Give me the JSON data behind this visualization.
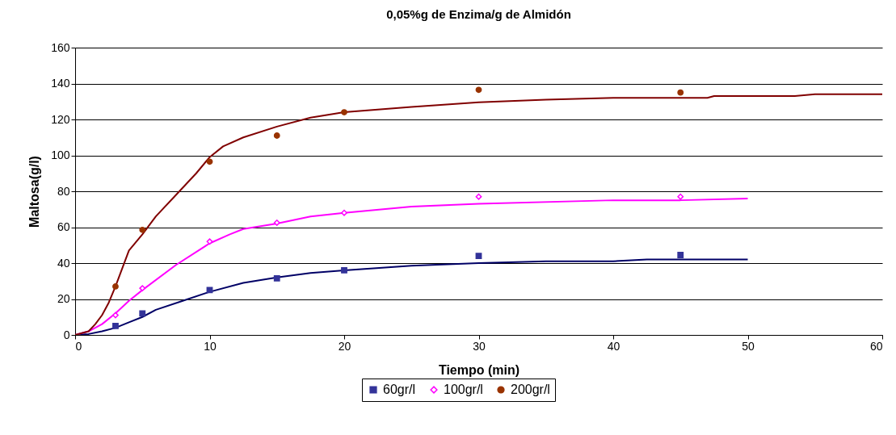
{
  "chart_data": {
    "type": "scatter",
    "title": "0,05%g de Enzima/g de Almidón",
    "xlabel": "Tiempo (min)",
    "ylabel": "Maltosa(g/l)",
    "xlim": [
      0,
      60
    ],
    "xticks": [
      0,
      10,
      20,
      30,
      40,
      50,
      60
    ],
    "ylim": [
      0,
      160
    ],
    "yticks": [
      0,
      20,
      40,
      60,
      80,
      100,
      120,
      140,
      160
    ],
    "grid": "y",
    "legend": "bottom",
    "series": [
      {
        "name": "60gr/l",
        "marker": "square",
        "color": "#333399",
        "x": [
          3,
          5,
          10,
          15,
          20,
          30,
          45
        ],
        "values": [
          5,
          12,
          25,
          31.5,
          36,
          44,
          44.5
        ]
      },
      {
        "name": "100gr/l",
        "marker": "diamond",
        "color": "#ff00ff",
        "x": [
          3,
          5,
          10,
          15,
          20,
          30,
          45
        ],
        "values": [
          11,
          26,
          52,
          62.5,
          68,
          77,
          77
        ]
      },
      {
        "name": "200gr/l",
        "marker": "circle",
        "color": "#993300",
        "x": [
          3,
          5,
          10,
          15,
          20,
          30,
          45
        ],
        "values": [
          27,
          58.5,
          96.5,
          111,
          124,
          136.5,
          135
        ]
      },
      {
        "type": "line",
        "color": "#000066",
        "x": [
          0,
          1,
          2,
          3,
          4,
          5,
          6,
          8,
          10,
          12.5,
          15,
          17.5,
          20,
          25,
          30,
          35,
          40,
          42.5,
          50
        ],
        "values": [
          0,
          0.5,
          2,
          4,
          7,
          10,
          14,
          19,
          24,
          29,
          32,
          34.5,
          36,
          38.5,
          40,
          41,
          41,
          42,
          42
        ]
      },
      {
        "type": "line",
        "color": "#ff00ff",
        "x": [
          0,
          1,
          2,
          3,
          4,
          5,
          7.5,
          10,
          11.5,
          12.5,
          15,
          17.5,
          20,
          25,
          30,
          40,
          45,
          50
        ],
        "values": [
          0,
          2,
          6,
          12,
          19,
          25,
          39,
          51,
          56,
          59,
          62,
          66,
          68,
          71.5,
          73,
          75,
          75,
          76
        ]
      },
      {
        "type": "line",
        "color": "#800000",
        "x": [
          0,
          0.5,
          1,
          1.5,
          2,
          2.5,
          3,
          4,
          5,
          6,
          7.5,
          9,
          10,
          11,
          12.5,
          15,
          17.5,
          20,
          25,
          30,
          35,
          40,
          47,
          47.5,
          53.5,
          55,
          60
        ],
        "values": [
          0,
          1,
          2,
          6,
          11,
          18,
          27,
          47,
          56,
          66,
          78,
          90,
          99,
          105,
          110,
          116,
          121,
          124,
          127,
          129.5,
          131,
          132,
          132,
          133,
          133,
          134,
          134
        ]
      }
    ]
  }
}
